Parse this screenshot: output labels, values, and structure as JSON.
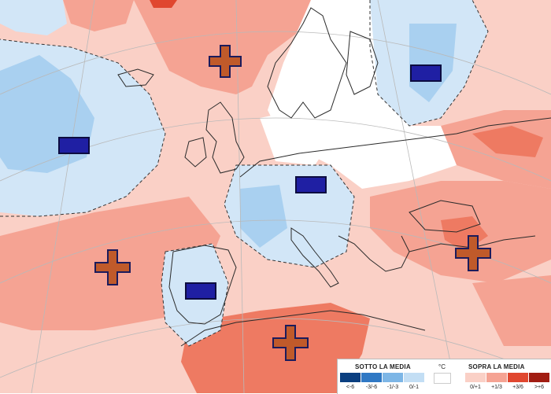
{
  "colors": {
    "sea": "#ffffff",
    "warm_light": "#fad0c6",
    "warm_mid": "#f5a393",
    "warm_strong": "#ee7a62",
    "warm_hot": "#e0472f",
    "cold_light": "#d2e6f7",
    "cold_mid": "#a9d0f0",
    "cold_strong": "#7eb6e6",
    "plus_fill": "#c05a2a",
    "plus_border": "#1b1b5c",
    "minus_fill": "#1f1fa3",
    "minus_border": "#0c0c40",
    "coast": "#2a2a2a"
  },
  "markers": [
    {
      "type": "plus",
      "region": "scandinavia-north-sea"
    },
    {
      "type": "minus",
      "region": "north-atlantic"
    },
    {
      "type": "minus",
      "region": "russia-baltic"
    },
    {
      "type": "minus",
      "region": "central-europe"
    },
    {
      "type": "plus",
      "region": "atlantic-west-iberia"
    },
    {
      "type": "minus",
      "region": "iberia"
    },
    {
      "type": "plus",
      "region": "north-africa"
    },
    {
      "type": "plus",
      "region": "aegean-turkey"
    }
  ],
  "legend": {
    "below_title": "SOTTO LA MEDIA",
    "unit": "°C",
    "above_title": "SOPRA LA MEDIA",
    "below": [
      {
        "label": "<-6",
        "color": "#0b3f80"
      },
      {
        "label": "-3/-6",
        "color": "#2f78c4"
      },
      {
        "label": "-1/-3",
        "color": "#7db6e6"
      },
      {
        "label": "0/-1",
        "color": "#c3def4"
      }
    ],
    "neutral": {
      "label": "",
      "color": "#ffffff"
    },
    "above": [
      {
        "label": "0/+1",
        "color": "#fad0c6"
      },
      {
        "label": "+1/3",
        "color": "#f5a393"
      },
      {
        "label": "+3/6",
        "color": "#e0472f"
      },
      {
        "label": ">+6",
        "color": "#a11d12"
      }
    ]
  }
}
